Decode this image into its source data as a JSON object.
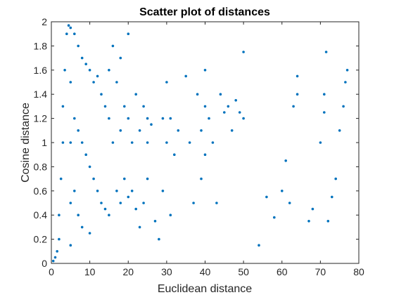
{
  "chart_data": {
    "type": "scatter",
    "title": "Scatter plot of distances",
    "xlabel": "Euclidean distance",
    "ylabel": "Cosine distance",
    "xlim": [
      0,
      80
    ],
    "ylim": [
      0,
      2
    ],
    "xticks": [
      "0",
      "10",
      "20",
      "30",
      "40",
      "50",
      "60",
      "70",
      "80"
    ],
    "yticks": [
      "0",
      "0.2",
      "0.4",
      "0.6",
      "0.8",
      "1",
      "1.2",
      "1.4",
      "1.6",
      "1.8",
      "2"
    ],
    "grid": false,
    "marker_color": "#0072BD",
    "series": [
      {
        "values": [
          [
            0.5,
            0.02
          ],
          [
            1,
            0.05
          ],
          [
            1.5,
            0.1
          ],
          [
            2,
            0.2
          ],
          [
            2,
            0.4
          ],
          [
            2.5,
            0.7
          ],
          [
            3,
            1.0
          ],
          [
            3,
            1.3
          ],
          [
            3.5,
            1.6
          ],
          [
            4,
            1.9
          ],
          [
            4.5,
            1.97
          ],
          [
            5,
            1.95
          ],
          [
            5,
            1.5
          ],
          [
            5,
            1.0
          ],
          [
            5,
            0.5
          ],
          [
            5,
            0.15
          ],
          [
            6,
            1.9
          ],
          [
            6,
            1.2
          ],
          [
            6,
            0.6
          ],
          [
            7,
            1.8
          ],
          [
            7,
            1.1
          ],
          [
            7,
            0.4
          ],
          [
            8,
            1.7
          ],
          [
            8,
            1.0
          ],
          [
            8,
            0.3
          ],
          [
            9,
            1.65
          ],
          [
            9,
            0.9
          ],
          [
            10,
            1.6
          ],
          [
            10,
            0.8
          ],
          [
            10,
            0.25
          ],
          [
            11,
            1.5
          ],
          [
            11,
            0.7
          ],
          [
            12,
            1.55
          ],
          [
            12,
            0.6
          ],
          [
            13,
            1.4
          ],
          [
            13,
            0.5
          ],
          [
            14,
            1.3
          ],
          [
            14,
            0.45
          ],
          [
            15,
            1.6
          ],
          [
            15,
            1.2
          ],
          [
            15,
            0.4
          ],
          [
            16,
            1.8
          ],
          [
            16,
            1.0
          ],
          [
            17,
            1.5
          ],
          [
            17,
            0.6
          ],
          [
            18,
            1.7
          ],
          [
            18,
            1.1
          ],
          [
            18,
            0.5
          ],
          [
            19,
            1.3
          ],
          [
            19,
            0.7
          ],
          [
            20,
            1.9
          ],
          [
            20,
            1.2
          ],
          [
            20,
            0.55
          ],
          [
            21,
            1.0
          ],
          [
            21,
            0.6
          ],
          [
            22,
            1.4
          ],
          [
            22,
            0.45
          ],
          [
            23,
            1.1
          ],
          [
            23,
            0.3
          ],
          [
            24,
            1.3
          ],
          [
            24,
            0.5
          ],
          [
            25,
            1.2
          ],
          [
            25,
            1.0
          ],
          [
            25,
            0.7
          ],
          [
            26,
            1.15
          ],
          [
            27,
            0.35
          ],
          [
            28,
            0.2
          ],
          [
            29,
            1.2
          ],
          [
            29,
            0.6
          ],
          [
            30,
            1.5
          ],
          [
            30,
            1.0
          ],
          [
            31,
            1.2
          ],
          [
            31,
            0.4
          ],
          [
            32,
            0.9
          ],
          [
            33,
            1.1
          ],
          [
            35,
            1.55
          ],
          [
            36,
            1.0
          ],
          [
            37,
            0.5
          ],
          [
            38,
            1.4
          ],
          [
            39,
            1.1
          ],
          [
            39,
            0.7
          ],
          [
            40,
            1.6
          ],
          [
            40,
            1.3
          ],
          [
            40,
            0.9
          ],
          [
            41,
            1.2
          ],
          [
            42,
            1.0
          ],
          [
            43,
            0.5
          ],
          [
            44,
            1.4
          ],
          [
            45,
            1.25
          ],
          [
            46,
            1.3
          ],
          [
            47,
            1.1
          ],
          [
            48,
            1.35
          ],
          [
            49,
            1.25
          ],
          [
            50,
            1.75
          ],
          [
            50,
            1.2
          ],
          [
            54,
            0.15
          ],
          [
            56,
            0.55
          ],
          [
            58,
            0.38
          ],
          [
            60,
            0.6
          ],
          [
            61,
            0.85
          ],
          [
            62,
            0.5
          ],
          [
            63,
            1.3
          ],
          [
            64,
            1.55
          ],
          [
            64,
            1.4
          ],
          [
            67,
            0.35
          ],
          [
            68,
            0.45
          ],
          [
            70,
            1.0
          ],
          [
            71,
            1.25
          ],
          [
            71,
            1.4
          ],
          [
            71.5,
            1.75
          ],
          [
            72,
            0.35
          ],
          [
            73,
            0.55
          ],
          [
            74,
            0.7
          ],
          [
            75,
            1.1
          ],
          [
            76,
            1.3
          ],
          [
            76.5,
            1.5
          ],
          [
            77,
            1.6
          ]
        ]
      }
    ]
  }
}
